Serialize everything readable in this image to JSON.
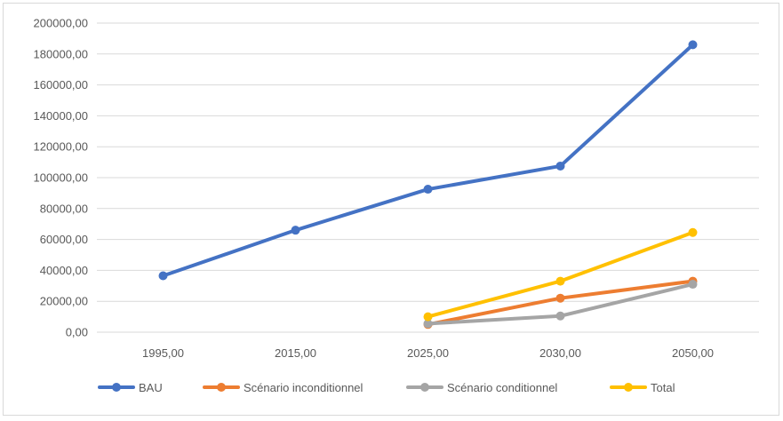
{
  "chart_data": {
    "type": "line",
    "categories": [
      "1995,00",
      "2015,00",
      "2025,00",
      "2030,00",
      "2050,00"
    ],
    "y_ticks": [
      "0,00",
      "20000,00",
      "40000,00",
      "60000,00",
      "80000,00",
      "100000,00",
      "120000,00",
      "140000,00",
      "160000,00",
      "180000,00",
      "200000,00"
    ],
    "ylim": [
      0,
      200000
    ],
    "grid": true,
    "legend_position": "bottom",
    "series": [
      {
        "name": "BAU",
        "color": "#4472c4",
        "values": [
          36500,
          66000,
          92500,
          107500,
          186000
        ]
      },
      {
        "name": "Scénario inconditionnel",
        "color": "#ed7d31",
        "values": [
          null,
          null,
          5000,
          22000,
          33000
        ]
      },
      {
        "name": "Scénario conditionnel",
        "color": "#a5a5a5",
        "values": [
          null,
          null,
          5500,
          10500,
          31000
        ]
      },
      {
        "name": "Total",
        "color": "#ffc000",
        "values": [
          null,
          null,
          10000,
          33000,
          64500
        ]
      }
    ]
  }
}
